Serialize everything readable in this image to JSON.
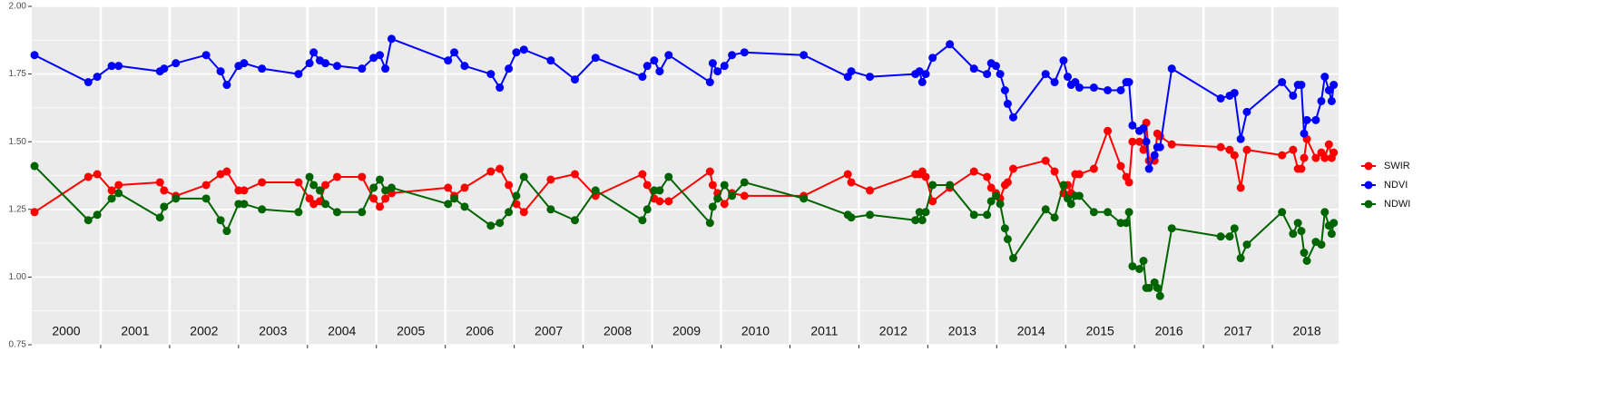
{
  "chart_data": {
    "type": "line",
    "x": [
      2000.04,
      2000.82,
      2000.95,
      2001.16,
      2001.26,
      2001.86,
      2001.92,
      2002.09,
      2002.53,
      2002.74,
      2002.83,
      2003.0,
      2003.08,
      2003.34,
      2003.87,
      2004.03,
      2004.09,
      2004.18,
      2004.26,
      2004.43,
      2004.79,
      2004.96,
      2005.05,
      2005.13,
      2005.22,
      2006.04,
      2006.13,
      2006.28,
      2006.66,
      2006.79,
      2006.92,
      2007.03,
      2007.14,
      2007.53,
      2007.88,
      2008.18,
      2008.86,
      2008.93,
      2009.03,
      2009.11,
      2009.24,
      2009.84,
      2009.88,
      2009.95,
      2010.05,
      2010.16,
      2010.34,
      2011.2,
      2011.84,
      2011.89,
      2012.16,
      2012.82,
      2012.88,
      2012.92,
      2012.97,
      2013.07,
      2013.32,
      2013.67,
      2013.86,
      2013.92,
      2013.99,
      2014.05,
      2014.12,
      2014.16,
      2014.24,
      2014.71,
      2014.84,
      2014.97,
      2015.03,
      2015.08,
      2015.14,
      2015.2,
      2015.41,
      2015.61,
      2015.8,
      2015.88,
      2015.92,
      2015.97,
      2016.07,
      2016.13,
      2016.17,
      2016.21,
      2016.29,
      2016.33,
      2016.37,
      2016.54,
      2017.25,
      2017.38,
      2017.45,
      2017.54,
      2017.63,
      2018.14,
      2018.3,
      2018.37,
      2018.42,
      2018.46,
      2018.5,
      2018.63,
      2018.71,
      2018.76,
      2018.82,
      2018.86,
      2018.89
    ],
    "series": [
      {
        "name": "SWIR",
        "color": "#ff0000",
        "values": [
          1.24,
          1.37,
          1.38,
          1.32,
          1.34,
          1.35,
          1.32,
          1.3,
          1.34,
          1.38,
          1.39,
          1.32,
          1.32,
          1.35,
          1.35,
          1.29,
          1.27,
          1.28,
          1.34,
          1.37,
          1.37,
          1.29,
          1.26,
          1.29,
          1.31,
          1.33,
          1.3,
          1.33,
          1.39,
          1.4,
          1.34,
          1.27,
          1.24,
          1.36,
          1.38,
          1.3,
          1.38,
          1.34,
          1.29,
          1.28,
          1.28,
          1.39,
          1.34,
          1.31,
          1.27,
          1.31,
          1.3,
          1.3,
          1.38,
          1.35,
          1.32,
          1.38,
          1.38,
          1.39,
          1.37,
          1.28,
          1.33,
          1.39,
          1.37,
          1.33,
          1.31,
          1.29,
          1.34,
          1.35,
          1.4,
          1.43,
          1.39,
          1.31,
          1.34,
          1.31,
          1.38,
          1.38,
          1.4,
          1.54,
          1.41,
          1.37,
          1.35,
          1.5,
          1.5,
          1.47,
          1.57,
          1.43,
          1.43,
          1.53,
          1.52,
          1.49,
          1.48,
          1.47,
          1.45,
          1.33,
          1.47,
          1.45,
          1.47,
          1.4,
          1.4,
          1.44,
          1.51,
          1.44,
          1.46,
          1.44,
          1.49,
          1.44,
          1.46
        ]
      },
      {
        "name": "NDVI",
        "color": "#0000ff",
        "values": [
          1.82,
          1.72,
          1.74,
          1.78,
          1.78,
          1.76,
          1.77,
          1.79,
          1.82,
          1.76,
          1.71,
          1.78,
          1.79,
          1.77,
          1.75,
          1.79,
          1.83,
          1.8,
          1.79,
          1.78,
          1.77,
          1.81,
          1.82,
          1.77,
          1.88,
          1.8,
          1.83,
          1.78,
          1.75,
          1.7,
          1.77,
          1.83,
          1.84,
          1.8,
          1.73,
          1.81,
          1.74,
          1.78,
          1.8,
          1.76,
          1.82,
          1.72,
          1.79,
          1.76,
          1.78,
          1.82,
          1.83,
          1.82,
          1.74,
          1.76,
          1.74,
          1.75,
          1.76,
          1.72,
          1.75,
          1.81,
          1.86,
          1.77,
          1.75,
          1.79,
          1.78,
          1.75,
          1.69,
          1.64,
          1.59,
          1.75,
          1.72,
          1.8,
          1.74,
          1.71,
          1.72,
          1.7,
          1.7,
          1.69,
          1.69,
          1.72,
          1.72,
          1.56,
          1.54,
          1.55,
          1.5,
          1.4,
          1.45,
          1.48,
          1.48,
          1.77,
          1.66,
          1.67,
          1.68,
          1.51,
          1.61,
          1.72,
          1.67,
          1.71,
          1.71,
          1.53,
          1.58,
          1.58,
          1.65,
          1.74,
          1.69,
          1.65,
          1.71
        ]
      },
      {
        "name": "NDWI",
        "color": "#006400",
        "values": [
          1.41,
          1.21,
          1.23,
          1.29,
          1.31,
          1.22,
          1.26,
          1.29,
          1.29,
          1.21,
          1.17,
          1.27,
          1.27,
          1.25,
          1.24,
          1.37,
          1.34,
          1.32,
          1.27,
          1.24,
          1.24,
          1.33,
          1.36,
          1.32,
          1.33,
          1.27,
          1.29,
          1.26,
          1.19,
          1.2,
          1.24,
          1.3,
          1.37,
          1.25,
          1.21,
          1.32,
          1.21,
          1.25,
          1.32,
          1.32,
          1.37,
          1.2,
          1.26,
          1.29,
          1.34,
          1.3,
          1.35,
          1.29,
          1.23,
          1.22,
          1.23,
          1.21,
          1.24,
          1.21,
          1.24,
          1.34,
          1.34,
          1.23,
          1.23,
          1.28,
          1.3,
          1.27,
          1.18,
          1.14,
          1.07,
          1.25,
          1.22,
          1.34,
          1.29,
          1.27,
          1.3,
          1.3,
          1.24,
          1.24,
          1.2,
          1.2,
          1.24,
          1.04,
          1.03,
          1.06,
          0.96,
          0.96,
          0.98,
          0.96,
          0.93,
          1.18,
          1.15,
          1.15,
          1.18,
          1.07,
          1.12,
          1.24,
          1.16,
          1.2,
          1.17,
          1.09,
          1.06,
          1.13,
          1.12,
          1.24,
          1.19,
          1.16,
          1.2
        ]
      }
    ],
    "xlim": [
      2000,
      2018.96
    ],
    "xgrid": [
      2001,
      2002,
      2003,
      2004,
      2005,
      2006,
      2007,
      2008,
      2009,
      2010,
      2011,
      2012,
      2013,
      2014,
      2015,
      2016,
      2017,
      2018
    ],
    "year_labels": [
      {
        "value": 2000.5,
        "label": "2000"
      },
      {
        "value": 2001.5,
        "label": "2001"
      },
      {
        "value": 2002.5,
        "label": "2002"
      },
      {
        "value": 2003.5,
        "label": "2003"
      },
      {
        "value": 2004.5,
        "label": "2004"
      },
      {
        "value": 2005.5,
        "label": "2005"
      },
      {
        "value": 2006.5,
        "label": "2006"
      },
      {
        "value": 2007.5,
        "label": "2007"
      },
      {
        "value": 2008.5,
        "label": "2008"
      },
      {
        "value": 2009.5,
        "label": "2009"
      },
      {
        "value": 2010.5,
        "label": "2010"
      },
      {
        "value": 2011.5,
        "label": "2011"
      },
      {
        "value": 2012.5,
        "label": "2012"
      },
      {
        "value": 2013.5,
        "label": "2013"
      },
      {
        "value": 2014.5,
        "label": "2014"
      },
      {
        "value": 2015.5,
        "label": "2015"
      },
      {
        "value": 2016.5,
        "label": "2016"
      },
      {
        "value": 2017.5,
        "label": "2017"
      },
      {
        "value": 2018.5,
        "label": "2018"
      }
    ],
    "ylim": [
      0.75,
      2.0
    ],
    "yticks": [
      {
        "value": 0.75,
        "label": "0.75"
      },
      {
        "value": 1.0,
        "label": "1.00"
      },
      {
        "value": 1.25,
        "label": "1.25"
      },
      {
        "value": 1.5,
        "label": "1.50"
      },
      {
        "value": 1.75,
        "label": "1.75"
      },
      {
        "value": 2.0,
        "label": "2.00"
      }
    ],
    "grid": true,
    "legend": "right"
  }
}
